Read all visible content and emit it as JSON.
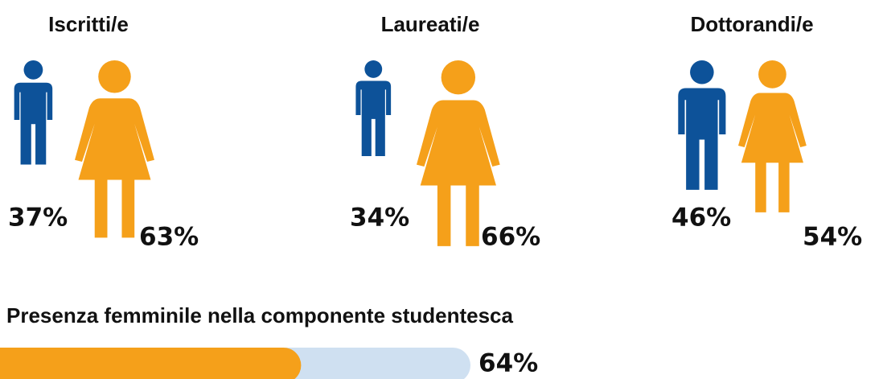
{
  "chart_data": [
    {
      "type": "pictogram",
      "title": "Iscritti/e",
      "values": [
        37,
        63
      ],
      "value_labels": [
        "37%",
        "63%"
      ],
      "colors": [
        "#0d5299",
        "#f5a01a"
      ]
    },
    {
      "type": "pictogram",
      "title": "Laureati/e",
      "values": [
        34,
        66
      ],
      "value_labels": [
        "34%",
        "66%"
      ],
      "colors": [
        "#0d5299",
        "#f5a01a"
      ]
    },
    {
      "type": "pictogram",
      "title": "Dottorandi/e",
      "values": [
        46,
        54
      ],
      "value_labels": [
        "46%",
        "54%"
      ],
      "colors": [
        "#0d5299",
        "#f5a01a"
      ]
    },
    {
      "type": "progress",
      "title": "Presenza femminile nella componente studentesca",
      "values": [
        64
      ],
      "value_labels": [
        "64%"
      ],
      "xlim": [
        0,
        100
      ],
      "color": "#f5a01a",
      "track_color": "#cfe0f1"
    }
  ]
}
